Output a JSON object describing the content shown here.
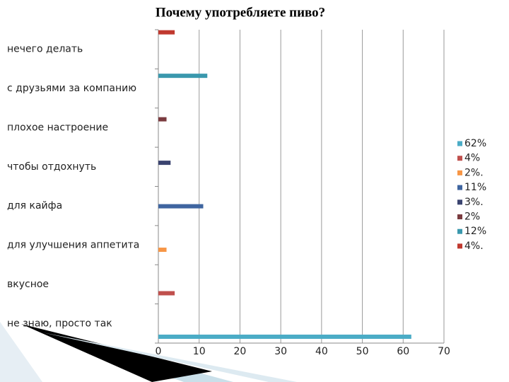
{
  "chart_data": {
    "type": "bar",
    "orientation": "horizontal",
    "title": "Почему употребляете пиво?",
    "categories": [
      "не знаю, просто так",
      "вкусное",
      "для улучшения аппетита",
      "для кайфа",
      "чтобы отдохнуть",
      "плохое настроение",
      "с друзьями за компанию",
      "нечего делать"
    ],
    "series": [
      {
        "name": "62%",
        "color": "#4bacc6",
        "values": [
          62,
          0,
          0,
          0,
          0,
          0,
          0,
          0
        ]
      },
      {
        "name": "4%",
        "color": "#c0504d",
        "values": [
          0,
          4,
          0,
          0,
          0,
          0,
          0,
          0
        ]
      },
      {
        "name": "2%.",
        "color": "#f79646",
        "values": [
          0,
          0,
          2,
          0,
          0,
          0,
          0,
          0
        ]
      },
      {
        "name": "11%",
        "color": "#3f65a0",
        "values": [
          0,
          0,
          0,
          11,
          0,
          0,
          0,
          0
        ]
      },
      {
        "name": "3%.",
        "color": "#3b4470",
        "values": [
          0,
          0,
          0,
          0,
          3,
          0,
          0,
          0
        ]
      },
      {
        "name": "2%",
        "color": "#7a3b3f",
        "values": [
          0,
          0,
          0,
          0,
          0,
          2,
          0,
          0
        ]
      },
      {
        "name": "12%",
        "color": "#3a98ad",
        "values": [
          0,
          0,
          0,
          0,
          0,
          0,
          12,
          0
        ]
      },
      {
        "name": "4%.",
        "color": "#c0392f",
        "values": [
          0,
          0,
          0,
          0,
          0,
          0,
          0,
          4
        ]
      }
    ],
    "xlim": [
      0,
      70
    ],
    "xticks": [
      0,
      10,
      20,
      30,
      40,
      50,
      60,
      70
    ],
    "grid": true,
    "legend": "right"
  }
}
